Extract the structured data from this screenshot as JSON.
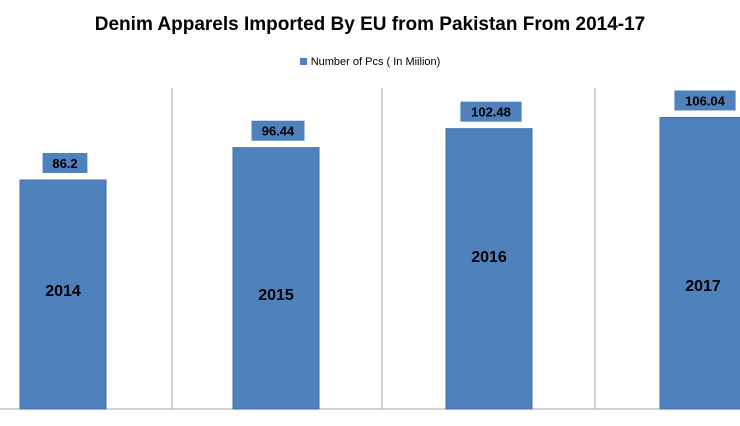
{
  "chart_data": {
    "type": "bar",
    "title": "Denim Apparels Imported By EU from Pakistan From 2014-17",
    "categories": [
      "2014",
      "2015",
      "2016",
      "2017"
    ],
    "series": [
      {
        "name": "Number of Pcs ( In Miilion)",
        "values": [
          86.2,
          96.44,
          102.48,
          106.04
        ]
      }
    ],
    "data_labels": [
      "86.2",
      "96.44",
      "102.48",
      "106.04"
    ],
    "legend_position": "top",
    "grid": "vertical category separators",
    "colors": {
      "bar": "#4f81bd",
      "bar_edge": "#3c6da8",
      "label_bg": "#4f81bd",
      "separator": "#a6a6a6"
    }
  }
}
